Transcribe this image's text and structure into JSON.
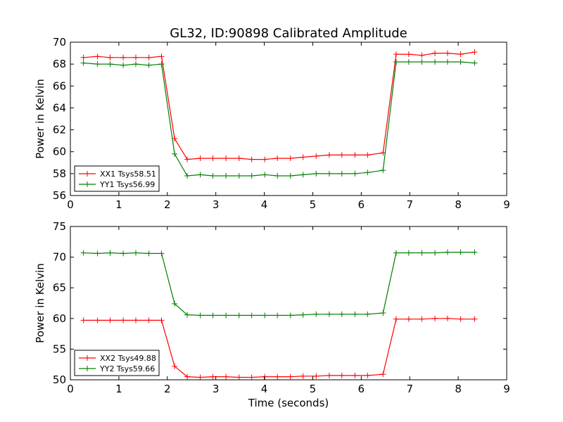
{
  "title": "GL32, ID:90898 Calibrated Amplitude",
  "chart_data": [
    {
      "type": "line",
      "title": "GL32, ID:90898 Calibrated Amplitude",
      "xlabel": "",
      "ylabel": "Power in Kelvin",
      "xlim": [
        0,
        9
      ],
      "ylim": [
        56,
        70
      ],
      "xticks": [
        0,
        1,
        2,
        3,
        4,
        5,
        6,
        7,
        8,
        9
      ],
      "yticks": [
        56,
        58,
        60,
        62,
        64,
        66,
        68,
        70
      ],
      "legend_position": "lower-left",
      "grid": false,
      "x": [
        0.27,
        0.56,
        0.82,
        1.09,
        1.35,
        1.62,
        1.88,
        2.15,
        2.41,
        2.68,
        2.94,
        3.21,
        3.48,
        3.74,
        4.01,
        4.27,
        4.54,
        4.8,
        5.07,
        5.34,
        5.6,
        5.87,
        6.13,
        6.45,
        6.72,
        6.98,
        7.25,
        7.52,
        7.78,
        8.05,
        8.34
      ],
      "series": [
        {
          "name": "XX1 Tsys58.51",
          "color": "#ff0000",
          "values": [
            68.6,
            68.7,
            68.6,
            68.6,
            68.6,
            68.6,
            68.7,
            61.2,
            59.3,
            59.4,
            59.4,
            59.4,
            59.4,
            59.3,
            59.3,
            59.4,
            59.4,
            59.5,
            59.6,
            59.7,
            59.7,
            59.7,
            59.7,
            59.9,
            68.9,
            68.9,
            68.8,
            69.0,
            69.0,
            68.9,
            69.1
          ]
        },
        {
          "name": "YY1 Tsys56.99",
          "color": "#008000",
          "values": [
            68.1,
            68.0,
            68.0,
            67.9,
            68.0,
            67.9,
            68.0,
            59.8,
            57.8,
            57.9,
            57.8,
            57.8,
            57.8,
            57.8,
            57.9,
            57.8,
            57.8,
            57.9,
            58.0,
            58.0,
            58.0,
            58.0,
            58.1,
            58.3,
            68.2,
            68.2,
            68.2,
            68.2,
            68.2,
            68.2,
            68.1
          ]
        }
      ]
    },
    {
      "type": "line",
      "title": "",
      "xlabel": "Time (seconds)",
      "ylabel": "Power in Kelvin",
      "xlim": [
        0,
        9
      ],
      "ylim": [
        50,
        75
      ],
      "xticks": [
        0,
        1,
        2,
        3,
        4,
        5,
        6,
        7,
        8,
        9
      ],
      "yticks": [
        50,
        55,
        60,
        65,
        70,
        75
      ],
      "legend_position": "lower-left",
      "grid": false,
      "x": [
        0.27,
        0.56,
        0.82,
        1.09,
        1.35,
        1.62,
        1.88,
        2.15,
        2.41,
        2.68,
        2.94,
        3.21,
        3.48,
        3.74,
        4.01,
        4.27,
        4.54,
        4.8,
        5.07,
        5.34,
        5.6,
        5.87,
        6.13,
        6.45,
        6.72,
        6.98,
        7.25,
        7.52,
        7.78,
        8.05,
        8.34
      ],
      "series": [
        {
          "name": "XX2 Tsys49.88",
          "color": "#ff0000",
          "values": [
            59.7,
            59.7,
            59.7,
            59.7,
            59.7,
            59.7,
            59.7,
            52.2,
            50.5,
            50.4,
            50.5,
            50.5,
            50.4,
            50.4,
            50.5,
            50.5,
            50.5,
            50.6,
            50.6,
            50.7,
            50.7,
            50.7,
            50.7,
            50.9,
            59.9,
            59.9,
            59.9,
            60.0,
            60.0,
            59.9,
            59.9
          ]
        },
        {
          "name": "YY2 Tsys59.66",
          "color": "#008000",
          "values": [
            70.7,
            70.6,
            70.7,
            70.6,
            70.7,
            70.6,
            70.6,
            62.4,
            60.6,
            60.5,
            60.5,
            60.5,
            60.5,
            60.5,
            60.5,
            60.5,
            60.5,
            60.6,
            60.7,
            60.7,
            60.7,
            60.7,
            60.7,
            60.9,
            70.7,
            70.7,
            70.7,
            70.7,
            70.8,
            70.8,
            70.8
          ]
        }
      ]
    }
  ]
}
